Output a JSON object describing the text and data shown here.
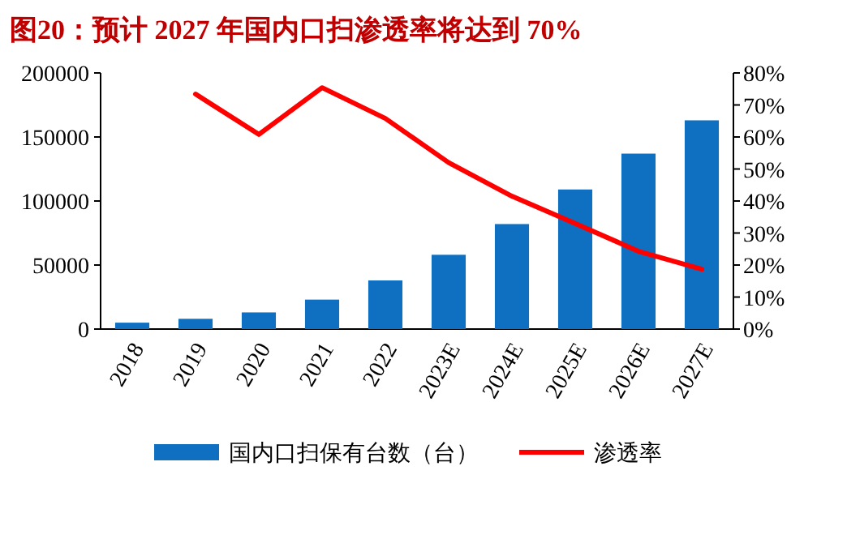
{
  "chart_data": {
    "type": "bar",
    "title": "图20：预计 2027 年国内口扫渗透率将达到 70%",
    "categories": [
      "2018",
      "2019",
      "2020",
      "2021",
      "2022",
      "2023E",
      "2024E",
      "2025E",
      "2026E",
      "2027E"
    ],
    "series": [
      {
        "name": "国内口扫保有台数（台）",
        "color": "#0f6fc0",
        "values": [
          5000,
          8000,
          13000,
          23000,
          38000,
          58000,
          82000,
          109000,
          137000,
          163000
        ]
      },
      {
        "name": "渗透率",
        "type": "line",
        "axis": "y2",
        "color": "#ff0000",
        "values": [
          null,
          73.4,
          60.8,
          75.4,
          65.8,
          52,
          41.5,
          33,
          24.3,
          18.7
        ]
      }
    ],
    "ylim": [
      0,
      200000
    ],
    "yticks": [
      0,
      50000,
      100000,
      150000,
      200000
    ],
    "y2lim": [
      0,
      80
    ],
    "y2ticks": [
      {
        "value": 0,
        "label": "0%"
      },
      {
        "value": 10,
        "label": "10%"
      },
      {
        "value": 20,
        "label": "20%"
      },
      {
        "value": 30,
        "label": "30%"
      },
      {
        "value": 40,
        "label": "40%"
      },
      {
        "value": 50,
        "label": "50%"
      },
      {
        "value": 60,
        "label": "60%"
      },
      {
        "value": 70,
        "label": "70%"
      },
      {
        "value": 80,
        "label": "80%"
      }
    ],
    "legend": "bottom"
  }
}
